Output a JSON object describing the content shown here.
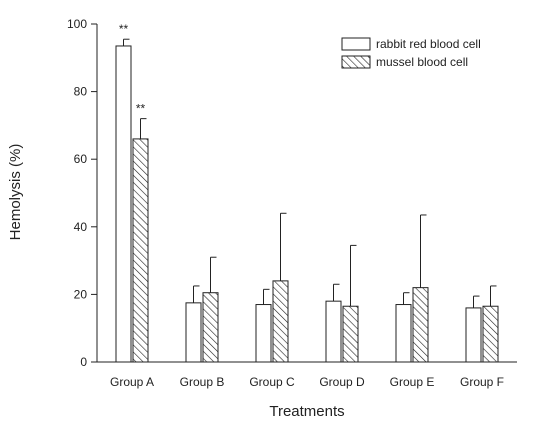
{
  "chart_data": {
    "type": "bar",
    "xlabel": "Treatments",
    "ylabel": "Hemolysis (%)",
    "ylim": [
      0,
      100
    ],
    "yticks": [
      0,
      20,
      40,
      60,
      80,
      100
    ],
    "categories": [
      "Group A",
      "Group B",
      "Group C",
      "Group D",
      "Group E",
      "Group F"
    ],
    "legend_position": "top-right",
    "series": [
      {
        "name": "rabbit red blood cell",
        "fill": "open",
        "values": [
          93.5,
          17.5,
          17.0,
          18.0,
          17.0,
          16.0
        ],
        "errors": [
          2.0,
          5.0,
          4.5,
          5.0,
          3.5,
          3.5
        ],
        "annotations": [
          "**",
          "",
          "",
          "",
          "",
          ""
        ]
      },
      {
        "name": "mussel blood cell",
        "fill": "hatched",
        "values": [
          66.0,
          20.5,
          24.0,
          16.5,
          22.0,
          16.5
        ],
        "errors": [
          6.0,
          10.5,
          20.0,
          18.0,
          21.5,
          6.0
        ],
        "annotations": [
          "**",
          "",
          "",
          "",
          "",
          ""
        ]
      }
    ]
  }
}
